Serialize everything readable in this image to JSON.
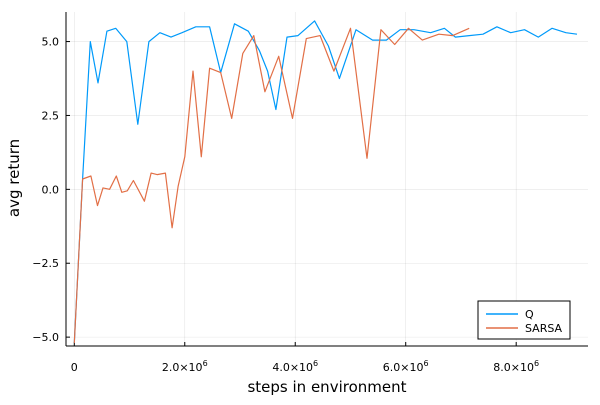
{
  "chart_data": {
    "type": "line",
    "xlabel": "steps in environment",
    "ylabel": "avg return",
    "xlim": [
      -150000,
      9300000
    ],
    "ylim": [
      -5.3,
      6.0
    ],
    "grid": true,
    "legend_position": "bottom-right",
    "x_ticks": [
      {
        "value": 0,
        "label": "0",
        "mantissa": "",
        "exp": ""
      },
      {
        "value": 2000000,
        "label": "",
        "mantissa": "2.0×10",
        "exp": "6"
      },
      {
        "value": 4000000,
        "label": "",
        "mantissa": "4.0×10",
        "exp": "6"
      },
      {
        "value": 6000000,
        "label": "",
        "mantissa": "6.0×10",
        "exp": "6"
      },
      {
        "value": 8000000,
        "label": "",
        "mantissa": "8.0×10",
        "exp": "6"
      }
    ],
    "y_ticks": [
      {
        "value": -5.0,
        "label": "−5.0"
      },
      {
        "value": -2.5,
        "label": "−2.5"
      },
      {
        "value": 0.0,
        "label": "0.0"
      },
      {
        "value": 2.5,
        "label": "2.5"
      },
      {
        "value": 5.0,
        "label": "5.0"
      }
    ],
    "series": [
      {
        "name": "Q",
        "color": "#009AFA",
        "points": [
          [
            0,
            -5.2
          ],
          [
            150000,
            0.35
          ],
          [
            290000,
            5.0
          ],
          [
            430000,
            3.6
          ],
          [
            590000,
            5.35
          ],
          [
            750000,
            5.45
          ],
          [
            950000,
            5.0
          ],
          [
            1150000,
            2.2
          ],
          [
            1350000,
            5.0
          ],
          [
            1550000,
            5.3
          ],
          [
            1750000,
            5.15
          ],
          [
            1950000,
            5.3
          ],
          [
            2200000,
            5.5
          ],
          [
            2450000,
            5.5
          ],
          [
            2650000,
            3.95
          ],
          [
            2900000,
            5.6
          ],
          [
            3150000,
            5.35
          ],
          [
            3350000,
            4.7
          ],
          [
            3500000,
            4.0
          ],
          [
            3650000,
            2.7
          ],
          [
            3850000,
            5.15
          ],
          [
            4050000,
            5.2
          ],
          [
            4350000,
            5.7
          ],
          [
            4600000,
            4.85
          ],
          [
            4800000,
            3.75
          ],
          [
            5100000,
            5.4
          ],
          [
            5400000,
            5.05
          ],
          [
            5650000,
            5.05
          ],
          [
            5900000,
            5.4
          ],
          [
            6150000,
            5.4
          ],
          [
            6450000,
            5.3
          ],
          [
            6700000,
            5.45
          ],
          [
            6900000,
            5.15
          ],
          [
            7150000,
            5.2
          ],
          [
            7400000,
            5.25
          ],
          [
            7650000,
            5.5
          ],
          [
            7900000,
            5.3
          ],
          [
            8150000,
            5.4
          ],
          [
            8400000,
            5.15
          ],
          [
            8650000,
            5.45
          ],
          [
            8900000,
            5.3
          ],
          [
            9100000,
            5.25
          ]
        ]
      },
      {
        "name": "SARSA",
        "color": "#E26F46",
        "points": [
          [
            0,
            -5.2
          ],
          [
            150000,
            0.35
          ],
          [
            300000,
            0.45
          ],
          [
            420000,
            -0.55
          ],
          [
            520000,
            0.05
          ],
          [
            640000,
            0.0
          ],
          [
            760000,
            0.45
          ],
          [
            860000,
            -0.1
          ],
          [
            960000,
            -0.05
          ],
          [
            1070000,
            0.3
          ],
          [
            1270000,
            -0.4
          ],
          [
            1390000,
            0.55
          ],
          [
            1500000,
            0.5
          ],
          [
            1650000,
            0.55
          ],
          [
            1770000,
            -1.3
          ],
          [
            1880000,
            0.1
          ],
          [
            2000000,
            1.1
          ],
          [
            2150000,
            4.0
          ],
          [
            2300000,
            1.1
          ],
          [
            2450000,
            4.1
          ],
          [
            2650000,
            3.95
          ],
          [
            2850000,
            2.4
          ],
          [
            3050000,
            4.6
          ],
          [
            3250000,
            5.2
          ],
          [
            3450000,
            3.3
          ],
          [
            3700000,
            4.5
          ],
          [
            3950000,
            2.4
          ],
          [
            4200000,
            5.1
          ],
          [
            4450000,
            5.2
          ],
          [
            4700000,
            4.0
          ],
          [
            5000000,
            5.45
          ],
          [
            5300000,
            1.05
          ],
          [
            5550000,
            5.4
          ],
          [
            5800000,
            4.9
          ],
          [
            6050000,
            5.45
          ],
          [
            6300000,
            5.05
          ],
          [
            6600000,
            5.25
          ],
          [
            6850000,
            5.2
          ],
          [
            7150000,
            5.45
          ]
        ]
      }
    ]
  }
}
